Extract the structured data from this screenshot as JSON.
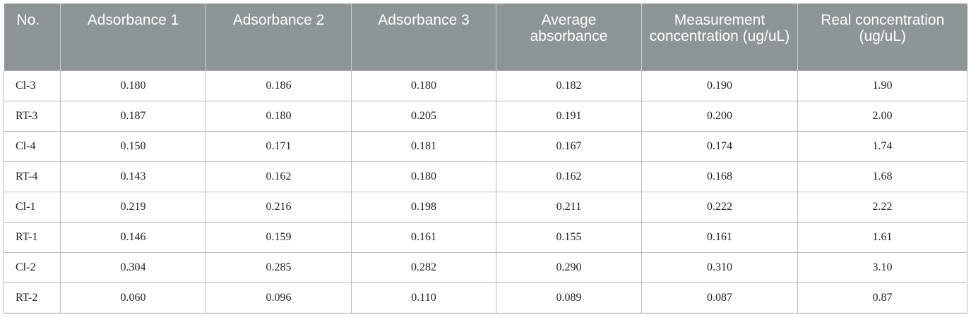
{
  "table": {
    "columns": [
      "No.",
      "Adsorbance 1",
      "Adsorbance 2",
      "Adsorbance 3",
      "Average absorbance",
      "Measurement concentration (ug/uL)",
      "Real concentration (ug/uL)"
    ],
    "rows": [
      [
        "Cl-3",
        "0.180",
        "0.186",
        "0.180",
        "0.182",
        "0.190",
        "1.90"
      ],
      [
        "RT-3",
        "0.187",
        "0.180",
        "0.205",
        "0.191",
        "0.200",
        "2.00"
      ],
      [
        "Cl-4",
        "0.150",
        "0.171",
        "0.181",
        "0.167",
        "0.174",
        "1.74"
      ],
      [
        "RT-4",
        "0.143",
        "0.162",
        "0.180",
        "0.162",
        "0.168",
        "1.68"
      ],
      [
        "Cl-1",
        "0.219",
        "0.216",
        "0.198",
        "0.211",
        "0.222",
        "2.22"
      ],
      [
        "RT-1",
        "0.146",
        "0.159",
        "0.161",
        "0.155",
        "0.161",
        "1.61"
      ],
      [
        "Cl-2",
        "0.304",
        "0.285",
        "0.282",
        "0.290",
        "0.310",
        "3.10"
      ],
      [
        "RT-2",
        "0.060",
        "0.096",
        "0.110",
        "0.089",
        "0.087",
        "0.87"
      ]
    ]
  },
  "colors": {
    "header_background": "#8e9595",
    "header_text": "#ffffff",
    "grid_line": "#b9bdbd"
  }
}
